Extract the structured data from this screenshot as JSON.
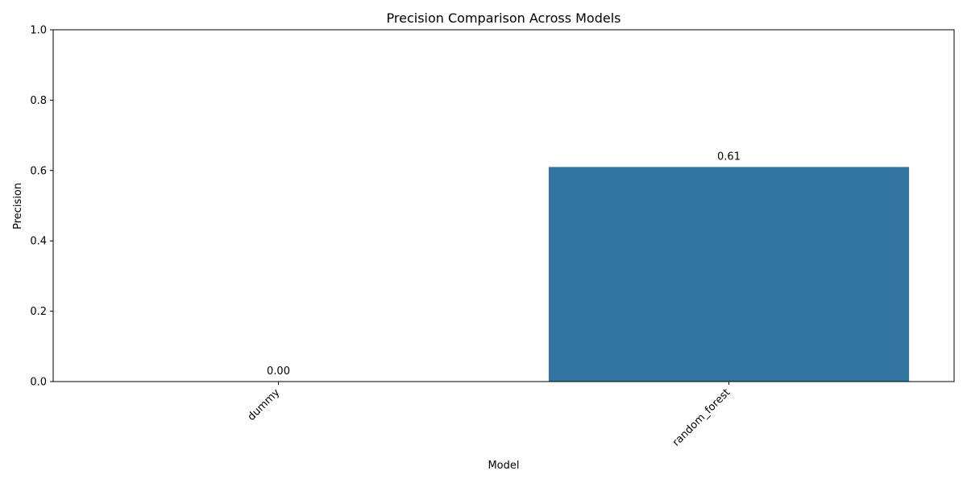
{
  "chart_data": {
    "type": "bar",
    "title": "Precision Comparison Across Models",
    "xlabel": "Model",
    "ylabel": "Precision",
    "categories": [
      "dummy",
      "random_forest"
    ],
    "values": [
      0.0,
      0.61
    ],
    "data_labels": [
      "0.00",
      "0.61"
    ],
    "ylim": [
      0,
      1
    ],
    "yticks": [
      0.0,
      0.2,
      0.4,
      0.6,
      0.8,
      1.0
    ],
    "ytick_labels": [
      "0.0",
      "0.2",
      "0.4",
      "0.6",
      "0.8",
      "1.0"
    ],
    "xtick_rotation": "45",
    "grid": false,
    "bar_color": "#3274a1"
  }
}
